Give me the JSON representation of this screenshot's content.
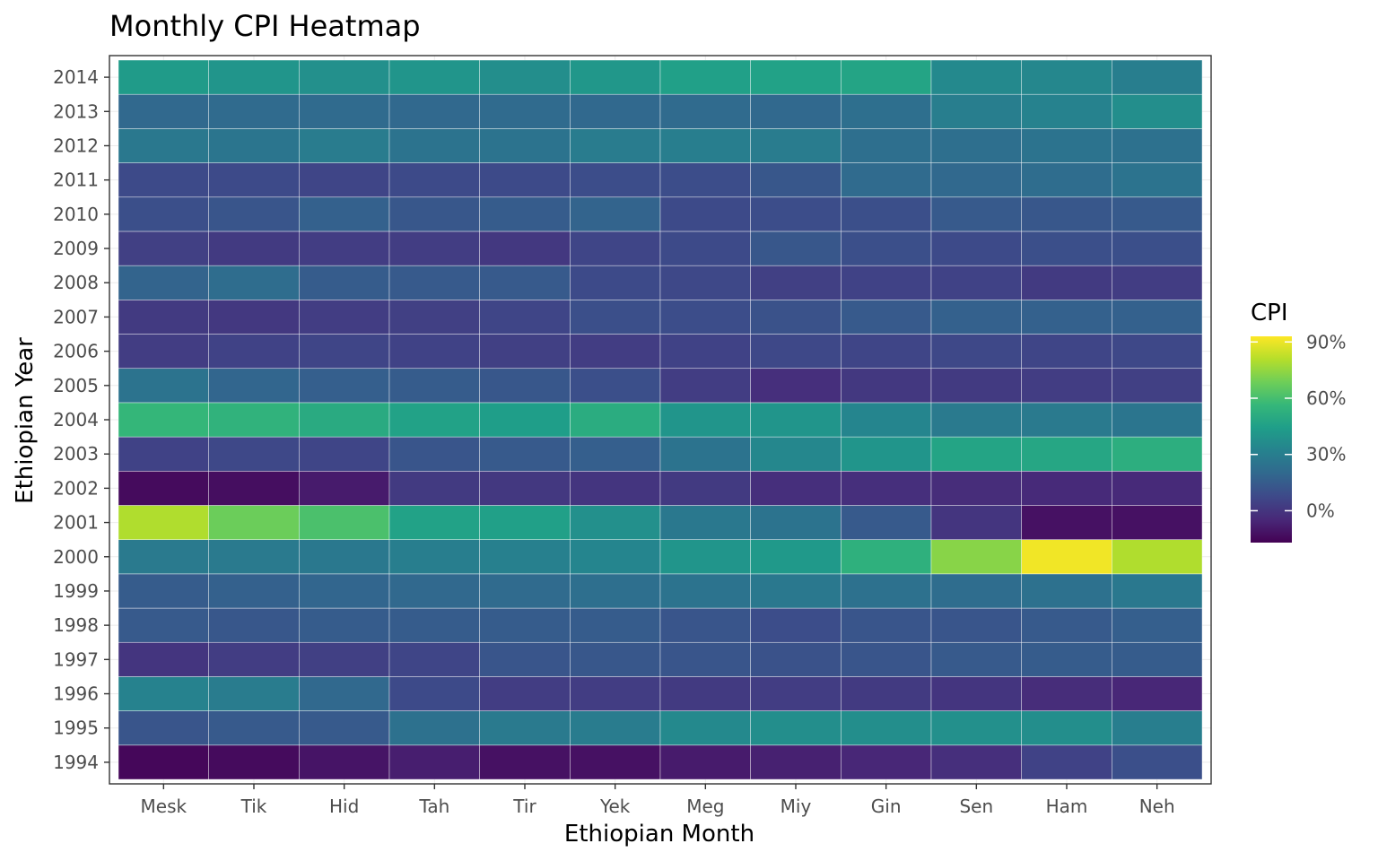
{
  "chart_data": {
    "type": "heatmap",
    "title": "Monthly CPI Heatmap",
    "xlabel": "Ethiopian Month",
    "ylabel": "Ethiopian Year",
    "x": [
      "Mesk",
      "Tik",
      "Hid",
      "Tah",
      "Tir",
      "Yek",
      "Meg",
      "Miy",
      "Gin",
      "Sen",
      "Ham",
      "Neh"
    ],
    "y": [
      "1994",
      "1995",
      "1996",
      "1997",
      "1998",
      "1999",
      "2000",
      "2001",
      "2002",
      "2003",
      "2004",
      "2005",
      "2006",
      "2007",
      "2008",
      "2009",
      "2010",
      "2011",
      "2012",
      "2013",
      "2014"
    ],
    "values": [
      [
        -15,
        -14,
        -11,
        -8,
        -12,
        -12,
        -9,
        -7,
        -5,
        -2,
        5,
        10
      ],
      [
        12,
        14,
        14,
        24,
        28,
        29,
        35,
        37,
        37,
        38,
        37,
        30
      ],
      [
        32,
        29,
        20,
        8,
        3,
        3,
        2,
        3,
        2,
        0,
        -3,
        -5
      ],
      [
        0,
        3,
        4,
        6,
        12,
        13,
        12,
        11,
        12,
        14,
        15,
        15
      ],
      [
        14,
        13,
        15,
        15,
        15,
        15,
        12,
        9,
        12,
        12,
        14,
        16
      ],
      [
        15,
        17,
        19,
        20,
        21,
        23,
        25,
        27,
        24,
        22,
        24,
        27
      ],
      [
        28,
        28,
        27,
        30,
        31,
        33,
        40,
        42,
        53,
        73,
        91,
        80
      ],
      [
        80,
        68,
        61,
        46,
        45,
        38,
        27,
        25,
        14,
        0,
        -12,
        -12
      ],
      [
        -14,
        -13,
        -9,
        2,
        1,
        0,
        2,
        -2,
        -2,
        -3,
        -4,
        -4
      ],
      [
        5,
        7,
        6,
        12,
        14,
        16,
        25,
        34,
        40,
        47,
        48,
        52
      ],
      [
        56,
        54,
        50,
        46,
        44,
        51,
        40,
        40,
        33,
        28,
        28,
        26
      ],
      [
        25,
        19,
        16,
        15,
        13,
        10,
        3,
        -2,
        1,
        2,
        3,
        4
      ],
      [
        3,
        5,
        6,
        5,
        4,
        3,
        5,
        7,
        6,
        7,
        6,
        7
      ],
      [
        2,
        1,
        3,
        4,
        6,
        10,
        9,
        11,
        14,
        17,
        17,
        17
      ],
      [
        18,
        22,
        15,
        14,
        14,
        8,
        7,
        4,
        5,
        5,
        2,
        3
      ],
      [
        4,
        2,
        3,
        3,
        1,
        6,
        8,
        13,
        10,
        8,
        10,
        10
      ],
      [
        10,
        12,
        17,
        13,
        15,
        18,
        8,
        9,
        10,
        14,
        13,
        14
      ],
      [
        8,
        8,
        6,
        8,
        8,
        9,
        9,
        13,
        21,
        20,
        22,
        25
      ],
      [
        27,
        26,
        29,
        25,
        25,
        29,
        30,
        29,
        23,
        23,
        25,
        24
      ],
      [
        20,
        21,
        21,
        20,
        21,
        20,
        21,
        20,
        23,
        30,
        32,
        37
      ],
      [
        43,
        40,
        38,
        40,
        37,
        41,
        45,
        46,
        47,
        35,
        34,
        30
      ]
    ],
    "legend": {
      "title": "CPI",
      "placement": "right",
      "min": -17,
      "max": 93,
      "ticks": [
        0,
        30,
        60,
        90
      ],
      "tick_labels": [
        "0%",
        "30%",
        "60%",
        "90%"
      ],
      "colormap": "viridis"
    },
    "grid": true
  }
}
